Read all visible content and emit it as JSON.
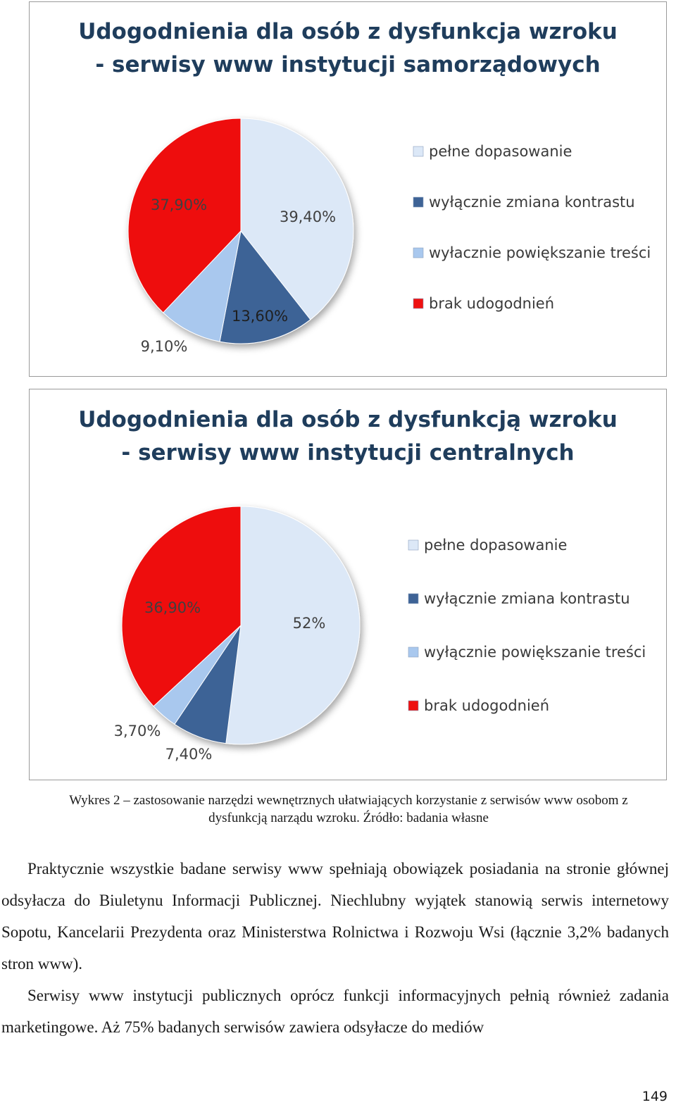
{
  "chart_data": [
    {
      "type": "pie",
      "title": [
        "Udogodnienia dla osób z dysfunkcja wzroku",
        "- serwisy www instytucji samorządowych"
      ],
      "legend_position": "right",
      "categories": [
        "pełne dopasowanie",
        "wyłącznie zmiana kontrastu",
        "wyłacznie powiększanie treści",
        "brak udogodnień"
      ],
      "values": [
        39.4,
        13.6,
        9.1,
        37.9
      ],
      "labels": [
        "39,40%",
        "13,60%",
        "9,10%",
        "37,90%"
      ],
      "colors": [
        "#dce8f7",
        "#3e6396",
        "#a9c8ee",
        "#ee1111"
      ]
    },
    {
      "type": "pie",
      "title": [
        "Udogodnienia dla osób z dysfunkcją wzroku",
        "- serwisy www instytucji centralnych"
      ],
      "legend_position": "right",
      "categories": [
        "pełne dopasowanie",
        "wyłącznie zmiana kontrastu",
        "wyłącznie powiększanie treści",
        "brak udogodnień"
      ],
      "values": [
        52,
        7.4,
        3.7,
        36.9
      ],
      "labels": [
        "52%",
        "7,40%",
        "3,70%",
        "36,90%"
      ],
      "colors": [
        "#dce8f7",
        "#3e6396",
        "#a9c8ee",
        "#ee1111"
      ]
    }
  ],
  "caption": {
    "line1": "Wykres 2 – zastosowanie narzędzi wewnętrznych ułatwiających korzystanie z serwisów www osobom z",
    "line2": "dysfunkcją narządu wzroku. Źródło: badania własne"
  },
  "paragraphs": [
    "Praktycznie wszystkie badane serwisy www spełniają obowiązek posiadania na stronie głównej odsyłacza do Biuletynu Informacji Publicznej. Niechlubny wyjątek stanowią serwis internetowy Sopotu, Kancelarii Prezydenta oraz Ministerstwa Rolnictwa i Rozwoju Wsi (łącznie 3,2% badanych stron www).",
    "Serwisy www instytucji publicznych oprócz funkcji informacyjnych pełnią również zadania marketingowe. Aż 75% badanych serwisów zawiera odsyłacze do mediów"
  ],
  "page_number": "149"
}
